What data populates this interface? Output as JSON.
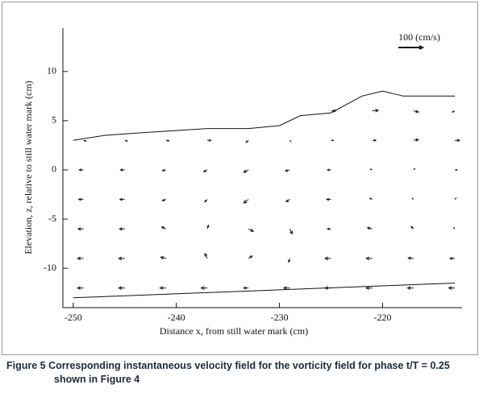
{
  "chart_data": {
    "type": "quiver",
    "xlabel": "Distance x, from still water mark (cm)",
    "ylabel": "Elevation, z, relative to still water mark (cm)",
    "xlim": [
      -251,
      -212.3
    ],
    "ylim": [
      -14,
      14.4
    ],
    "xticks": [
      -250,
      -240,
      -230,
      -220
    ],
    "yticks": [
      -10,
      -5,
      0,
      5,
      10
    ],
    "color": "#1a1a1a",
    "scale_arrow": {
      "label": "100 (cm/s)",
      "value": 100
    },
    "x": [
      -249,
      -245,
      -241,
      -237,
      -233,
      -229,
      -225,
      -221,
      -217,
      -213,
      -249,
      -245,
      -241,
      -237,
      -233,
      -229,
      -225,
      -221,
      -217,
      -213,
      -249,
      -245,
      -241,
      -237,
      -233,
      -229,
      -225,
      -221,
      -217,
      -213,
      -249,
      -245,
      -241,
      -237,
      -233,
      -229,
      -225,
      -221,
      -217,
      -213,
      -249,
      -245,
      -241,
      -237,
      -233,
      -229,
      -225,
      -221,
      -217,
      -213,
      -249,
      -245,
      -241,
      -237,
      -233,
      -229,
      -225,
      -221,
      -217,
      -213,
      -225,
      -221,
      -217,
      -213
    ],
    "y": [
      -12,
      -12,
      -12,
      -12,
      -12,
      -12,
      -12,
      -12,
      -12,
      -12,
      -9,
      -9,
      -9,
      -9,
      -9,
      -9,
      -9,
      -9,
      -9,
      -9,
      -6,
      -6,
      -6,
      -6,
      -6,
      -6,
      -6,
      -6,
      -6,
      -6,
      -3,
      -3,
      -3,
      -3,
      -3,
      -3,
      -3,
      -3,
      -3,
      -3,
      0,
      0,
      0,
      0,
      0,
      0,
      0,
      0,
      0,
      0,
      3,
      3,
      3,
      3,
      3,
      3,
      3,
      3,
      3,
      3,
      6,
      6,
      6,
      6
    ],
    "u": [
      -25,
      -25,
      -25,
      -25,
      -20,
      -25,
      -25,
      -25,
      -25,
      -25,
      -25,
      -25,
      -22,
      -10,
      15,
      -5,
      -25,
      -25,
      -22,
      -20,
      -22,
      -22,
      -18,
      5,
      20,
      10,
      -15,
      -20,
      -10,
      -5,
      -20,
      -20,
      -15,
      -10,
      -20,
      -15,
      -18,
      -10,
      -5,
      5,
      -18,
      -18,
      -15,
      -15,
      -20,
      -18,
      -15,
      -8,
      5,
      10,
      10,
      10,
      12,
      15,
      -10,
      5,
      10,
      15,
      20,
      20,
      20,
      25,
      20,
      -10
    ],
    "v": [
      0,
      0,
      0,
      0,
      0,
      0,
      0,
      0,
      0,
      0,
      0,
      0,
      5,
      20,
      10,
      -15,
      0,
      0,
      2,
      0,
      0,
      0,
      8,
      15,
      -10,
      -20,
      0,
      5,
      10,
      5,
      0,
      0,
      -5,
      -10,
      -15,
      -10,
      0,
      5,
      5,
      5,
      0,
      0,
      -3,
      -8,
      -10,
      -5,
      0,
      3,
      5,
      0,
      -3,
      -3,
      -2,
      0,
      -8,
      -5,
      0,
      0,
      3,
      0,
      0,
      2,
      -5,
      -5
    ],
    "boundaries": [
      {
        "x": [
          -250,
          -247,
          -243,
          -240,
          -237,
          -233,
          -230,
          -228,
          -225,
          -222,
          -220,
          -218,
          -215,
          -213
        ],
        "y": [
          3,
          3.5,
          3.8,
          4,
          4.2,
          4.2,
          4.5,
          5.5,
          5.8,
          7.5,
          8,
          7.5,
          7.5,
          7.5
        ]
      },
      {
        "x": [
          -250,
          -213
        ],
        "y": [
          -13,
          -11.5
        ]
      }
    ]
  },
  "caption": {
    "label": "Figure 5",
    "text": "Corresponding instantaneous velocity field for the vorticity field for phase t/T = 0.25 shown in Figure 4"
  }
}
